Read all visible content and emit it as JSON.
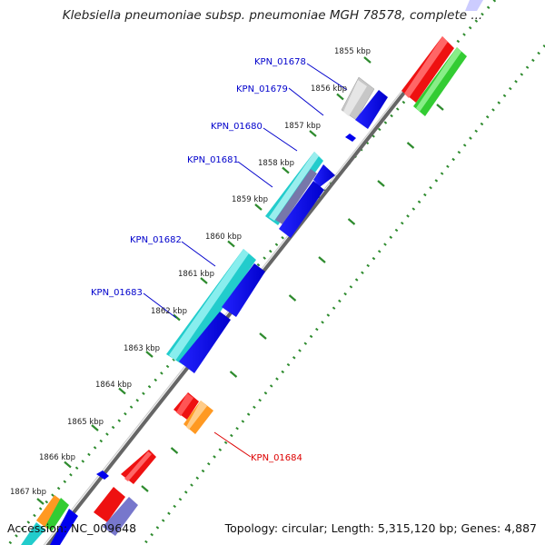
{
  "title": "Klebsiella pneumoniae subsp. pneumoniae MGH 78578, complete ...",
  "footer": {
    "accession": "Accession: NC_009648",
    "summary": "Topology: circular; Length: 5,315,120 bp; Genes: 4,887"
  },
  "ticks": [
    "1855 kbp",
    "1856 kbp",
    "1857 kbp",
    "1858 kbp",
    "1859 kbp",
    "1860 kbp",
    "1861 kbp",
    "1862 kbp",
    "1863 kbp",
    "1864 kbp",
    "1865 kbp",
    "1866 kbp",
    "1867 kbp"
  ],
  "gene_labels": [
    "KPN_01678",
    "KPN_01679",
    "KPN_01680",
    "KPN_01681",
    "KPN_01682",
    "KPN_01683",
    "KPN_01684"
  ],
  "colors": {
    "label_blue": "#0000cc",
    "label_red": "#dd0000",
    "backbone": "#777777",
    "tick_green": "#2e8b2e",
    "cds_blue": "#0000ee",
    "cyan": "#22cccc",
    "gray": "#bbbbbb",
    "red": "#ee1111",
    "green": "#33cc33",
    "orange": "#ff9922",
    "slate": "#7777cc"
  }
}
